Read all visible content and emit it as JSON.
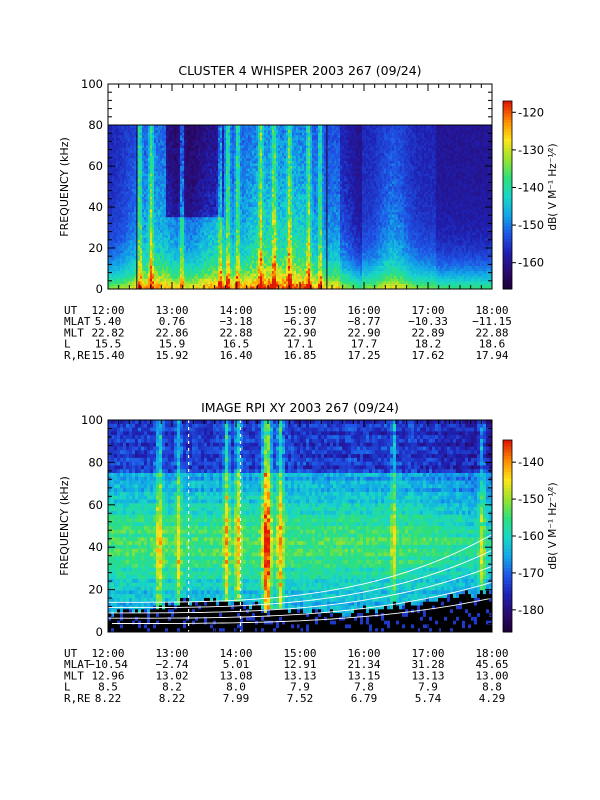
{
  "chart_data": [
    {
      "type": "heatmap",
      "title": "CLUSTER 4 WHISPER 2003 267 (09/24)",
      "ylabel": "FREQUENCY (kHz)",
      "xlim": [
        "12:00",
        "18:00"
      ],
      "ylim": [
        0,
        100
      ],
      "x_ticks": [
        "12:00",
        "13:00",
        "14:00",
        "15:00",
        "16:00",
        "17:00",
        "18:00"
      ],
      "y_ticks": [
        "0",
        "20",
        "40",
        "60",
        "80",
        "100"
      ],
      "data_upper_khz": 80,
      "colorbar": {
        "label": "dB( V M⁻¹ Hz⁻¹⁄²)",
        "range": [
          -167,
          -117
        ],
        "ticks": [
          "-120",
          "-130",
          "-140",
          "-150",
          "-160"
        ],
        "colormap": [
          "#1a0033",
          "#2a0a6e",
          "#1f1fb0",
          "#1f55e6",
          "#12a6e8",
          "#19d6c8",
          "#2ee07a",
          "#9be32e",
          "#ffe51a",
          "#ff8c00",
          "#e01a00"
        ]
      },
      "ephemeris": {
        "rows": [
          {
            "label": "UT",
            "values": [
              "12:00",
              "13:00",
              "14:00",
              "15:00",
              "16:00",
              "17:00",
              "18:00"
            ]
          },
          {
            "label": "MLAT",
            "values": [
              "5.40",
              "0.76",
              "−3.18",
              "−6.37",
              "−8.77",
              "−10.33",
              "−11.15"
            ]
          },
          {
            "label": "MLT",
            "values": [
              "22.82",
              "22.86",
              "22.88",
              "22.90",
              "22.90",
              "22.89",
              "22.88"
            ]
          },
          {
            "label": "L",
            "values": [
              "15.5",
              "15.9",
              "16.5",
              "17.1",
              "17.7",
              "18.2",
              "18.6"
            ]
          },
          {
            "label": "R,RE",
            "values": [
              "15.40",
              "15.92",
              "16.40",
              "16.85",
              "17.25",
              "17.62",
              "17.94"
            ]
          }
        ]
      }
    },
    {
      "type": "heatmap",
      "title": "IMAGE RPI XY 2003 267 (09/24)",
      "ylabel": "FREQUENCY (kHz)",
      "xlim": [
        "12:00",
        "18:00"
      ],
      "ylim": [
        0,
        100
      ],
      "x_ticks": [
        "12:00",
        "13:00",
        "14:00",
        "15:00",
        "16:00",
        "17:00",
        "18:00"
      ],
      "y_ticks": [
        "0",
        "20",
        "40",
        "60",
        "80",
        "100"
      ],
      "colorbar": {
        "label": "dB( V M⁻¹ Hz⁻¹⁄²)",
        "range": [
          -186,
          -134
        ],
        "ticks": [
          "-140",
          "-150",
          "-160",
          "-170",
          "-180"
        ],
        "colormap": [
          "#1a0033",
          "#2a0a6e",
          "#1f1fb0",
          "#1f55e6",
          "#12a6e8",
          "#19d6c8",
          "#2ee07a",
          "#9be32e",
          "#ffe51a",
          "#ff8c00",
          "#e01a00"
        ]
      },
      "ephemeris": {
        "rows": [
          {
            "label": "UT",
            "values": [
              "12:00",
              "13:00",
              "14:00",
              "15:00",
              "16:00",
              "17:00",
              "18:00"
            ]
          },
          {
            "label": "MLAT",
            "values": [
              "−10.54",
              "−2.74",
              "5.01",
              "12.91",
              "21.34",
              "31.28",
              "45.65"
            ]
          },
          {
            "label": "MLT",
            "values": [
              "12.96",
              "13.02",
              "13.08",
              "13.13",
              "13.15",
              "13.13",
              "13.00"
            ]
          },
          {
            "label": "L",
            "values": [
              "8.5",
              "8.2",
              "8.0",
              "7.9",
              "7.8",
              "7.9",
              "8.8"
            ]
          },
          {
            "label": "R,RE",
            "values": [
              "8.22",
              "8.22",
              "7.99",
              "7.52",
              "6.79",
              "5.74",
              "4.29"
            ]
          }
        ]
      }
    }
  ]
}
